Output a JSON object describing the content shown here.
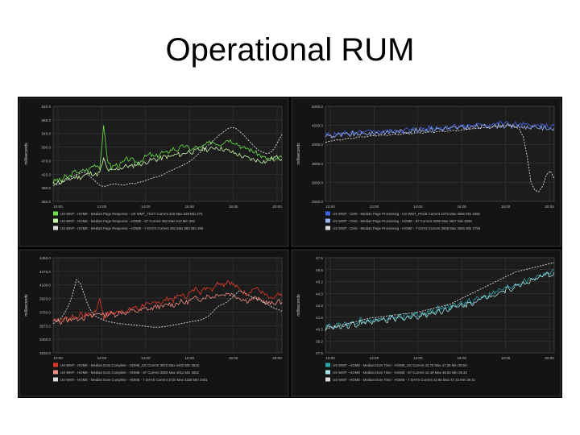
{
  "slide": {
    "title": "Operational RUM"
  },
  "chart_data": [
    {
      "type": "line",
      "ylabel": "milliseconds",
      "ylim": [
        350,
        620
      ],
      "yticks": [
        "620.0",
        "585.0",
        "545.0",
        "500.0",
        "470.0",
        "425.0",
        "390.0",
        "350.0"
      ],
      "xticks": [
        "10:00",
        "12:00",
        "14:00",
        "16:00",
        "18:00",
        "20:00"
      ],
      "grid": true,
      "series": [
        {
          "color": "#6be14a",
          "seed": 3,
          "values": [
            405,
            412,
            408,
            420,
            418,
            430,
            436,
            432,
            440,
            438,
            450,
            455,
            448,
            560,
            470,
            446,
            454,
            452,
            460,
            470,
            468,
            465,
            458,
            470,
            478,
            484,
            476,
            480,
            490,
            486,
            494,
            500,
            496,
            504,
            508,
            500,
            498,
            506,
            500,
            510,
            514,
            520,
            516,
            512,
            520,
            526,
            522,
            518,
            510,
            500,
            502,
            495,
            490,
            484,
            476,
            472,
            470,
            466,
            470,
            475
          ]
        },
        {
          "color": "#c6f5a8",
          "seed": 11,
          "values": [
            400,
            406,
            402,
            410,
            412,
            416,
            420,
            418,
            424,
            428,
            430,
            426,
            432,
            470,
            440,
            436,
            440,
            444,
            446,
            452,
            448,
            454,
            458,
            456,
            462,
            466,
            470,
            468,
            474,
            478,
            476,
            480,
            484,
            482,
            488,
            492,
            490,
            494,
            498,
            500,
            496,
            500,
            504,
            500,
            498,
            494,
            490,
            486,
            482,
            476,
            474,
            470,
            468,
            466,
            464,
            462,
            470,
            474,
            476,
            470
          ]
        },
        {
          "color": "#dcdcdc",
          "seed": 0,
          "values": [
            395,
            398,
            402,
            408,
            415,
            420,
            426,
            430,
            434,
            426,
            416,
            406,
            396,
            392,
            395,
            398,
            400,
            398,
            396,
            398,
            402,
            400,
            404,
            406,
            410,
            414,
            418,
            420,
            424,
            430,
            436,
            440,
            446,
            450,
            456,
            462,
            470,
            480,
            490,
            500,
            510,
            520,
            530,
            540,
            548,
            556,
            560,
            558,
            550,
            540,
            528,
            516,
            505,
            495,
            490,
            486,
            488,
            500,
            520,
            540
          ]
        }
      ],
      "legend": [
        "US WMT - HOME - Median Page Response - US WMT_TEST Current 426 Max 628 Min 370",
        "US WMT - HOME - Median Page Response - HOME - 87 Current 462 Max 510 Min 392",
        "US WMT - HOME - Median Page Response - HOME - 7 DAYS Current 481 Max 583 Min 366"
      ]
    },
    {
      "type": "line",
      "ylabel": "milliseconds",
      "ylim": [
        2500,
        5000
      ],
      "yticks": [
        "5000.0",
        "4500.0",
        "4000.0",
        "3500.0",
        "3000.0",
        "2500.0"
      ],
      "xticks": [
        "10:00",
        "12:00",
        "14:00",
        "16:00",
        "18:00",
        "20:00"
      ],
      "grid": true,
      "series": [
        {
          "color": "#3f63e8",
          "seed": 5,
          "values": [
            4250,
            4270,
            4230,
            4300,
            4260,
            4320,
            4280,
            4310,
            4260,
            4330,
            4290,
            4350,
            4310,
            4360,
            4320,
            4380,
            4340,
            4370,
            4330,
            4390,
            4350,
            4400,
            4360,
            4420,
            4380,
            4430,
            4400,
            4450,
            4410,
            4460,
            4430,
            4480,
            4440,
            4500,
            4460,
            4490,
            4450,
            4510,
            4480,
            4520,
            4490,
            4540,
            4500,
            4560,
            4520,
            4570,
            4530,
            4560,
            4510,
            4540,
            4500,
            4530,
            4490,
            4520,
            4480,
            4500,
            4470,
            4490,
            4460,
            4480
          ]
        },
        {
          "color": "#9ab0f0",
          "seed": 9,
          "values": [
            4220,
            4240,
            4200,
            4260,
            4230,
            4270,
            4240,
            4280,
            4250,
            4290,
            4260,
            4300,
            4270,
            4310,
            4290,
            4330,
            4300,
            4340,
            4320,
            4350,
            4330,
            4360,
            4340,
            4380,
            4350,
            4390,
            4370,
            4400,
            4380,
            4420,
            4390,
            4430,
            4400,
            4440,
            4420,
            4450,
            4430,
            4460,
            4440,
            4470,
            4450,
            4480,
            4460,
            4490,
            4470,
            4500,
            4480,
            4490,
            4460,
            4480,
            4450,
            4470,
            4440,
            4460,
            4430,
            4450,
            4420,
            4440,
            4410,
            4430
          ]
        },
        {
          "color": "#dcdcdc",
          "seed": 0,
          "values": [
            4050,
            4080,
            4100,
            4120,
            4110,
            4140,
            4160,
            4150,
            4180,
            4200,
            4190,
            4210,
            4230,
            4220,
            4240,
            4250,
            4230,
            4260,
            4270,
            4250,
            4280,
            4290,
            4270,
            4300,
            4310,
            4290,
            4320,
            4330,
            4310,
            4340,
            4350,
            4330,
            4360,
            4370,
            4350,
            4380,
            4390,
            4400,
            4410,
            4420,
            4430,
            4440,
            4450,
            4460,
            4470,
            4480,
            4490,
            4500,
            4480,
            4460,
            4400,
            4200,
            3700,
            3000,
            2800,
            2750,
            2900,
            3200,
            3300,
            3100
          ]
        }
      ],
      "legend": [
        "US WMT - CMS - Median Page Processing - US WMT_PAGE Current 4275 Max 4685 Min 4065",
        "US WMT - CMS - Median Page Processing - HOME - 87 Current 4296 Max 4627 Min 4059",
        "US WMT - CMS - Median Page Processing - HOME - 7 DAYS Current 3608 Max 4581 Min 2758"
      ]
    },
    {
      "type": "line",
      "ylabel": "milliseconds",
      "ylim": [
        3150,
        4450
      ],
      "yticks": [
        "4450.0",
        "4275.0",
        "4100.0",
        "3925.0",
        "3750.0",
        "3575.0",
        "3400.0",
        "3150.0"
      ],
      "xticks": [
        "10:00",
        "12:00",
        "14:00",
        "16:00",
        "18:00",
        "20:00"
      ],
      "grid": true,
      "series": [
        {
          "color": "#e23a2a",
          "seed": 7,
          "values": [
            3600,
            3620,
            3580,
            3640,
            3610,
            3660,
            3630,
            3680,
            3650,
            3700,
            3660,
            3720,
            3900,
            3620,
            3680,
            3700,
            3690,
            3720,
            3740,
            3700,
            3760,
            3780,
            3740,
            3800,
            3820,
            3790,
            3840,
            3860,
            3830,
            3880,
            3900,
            3870,
            3920,
            3950,
            3910,
            3960,
            3990,
            4050,
            3980,
            4020,
            4060,
            4020,
            4090,
            4120,
            4080,
            4140,
            4100,
            4060,
            4020,
            3980,
            3960,
            4000,
            4040,
            4010,
            3970,
            3930,
            3880,
            3900,
            3940,
            3920
          ]
        },
        {
          "color": "#f08d84",
          "seed": 13,
          "values": [
            3580,
            3600,
            3570,
            3610,
            3590,
            3630,
            3600,
            3640,
            3620,
            3660,
            3640,
            3680,
            3700,
            3660,
            3680,
            3690,
            3670,
            3700,
            3710,
            3690,
            3720,
            3730,
            3710,
            3740,
            3760,
            3740,
            3770,
            3790,
            3770,
            3800,
            3820,
            3800,
            3830,
            3850,
            3830,
            3860,
            3880,
            3900,
            3880,
            3910,
            3930,
            3910,
            3940,
            3960,
            3940,
            3970,
            3950,
            3930,
            3900,
            3880,
            3860,
            3880,
            3900,
            3880,
            3860,
            3840,
            3820,
            3830,
            3850,
            3840
          ]
        },
        {
          "color": "#dcdcdc",
          "seed": 0,
          "values": [
            3550,
            3580,
            3620,
            3700,
            3800,
            3950,
            4150,
            4100,
            3950,
            3800,
            3700,
            3650,
            3620,
            3600,
            3580,
            3570,
            3560,
            3550,
            3545,
            3540,
            3535,
            3530,
            3525,
            3520,
            3510,
            3505,
            3500,
            3500,
            3505,
            3510,
            3520,
            3530,
            3540,
            3550,
            3560,
            3570,
            3580,
            3590,
            3600,
            3620,
            3650,
            3700,
            3760,
            3800,
            3820,
            3850,
            3900,
            3950,
            4000,
            3980,
            3950,
            3920,
            3900,
            3880,
            3850,
            3820,
            3790,
            3760,
            3740,
            3720
          ]
        }
      ],
      "legend": [
        "US WMT - HOME - Median Dom Complete - HOME_US Current 3872 Max 4402 Min 3515",
        "US WMT - HOME - Median Dom Complete - HOME - 87 Current 3803 Max 4011 Min 3582",
        "US WMT - HOME - Median Dom Complete - HOME - 7 DAYS Current 3720 Max 4238 Min 3401"
      ]
    },
    {
      "type": "line",
      "ylabel": "milliseconds",
      "ylim": [
        37.5,
        47.5
      ],
      "yticks": [
        "47.5",
        "46.5",
        "45.2",
        "44.0",
        "42.8",
        "41.6",
        "40.5",
        "39.2",
        "37.5"
      ],
      "xticks": [
        "10:00",
        "12:00",
        "14:00",
        "16:00",
        "18:00",
        "20:00"
      ],
      "grid": true,
      "series": [
        {
          "color": "#2aa3a8",
          "seed": 4,
          "values": [
            40.2,
            40.5,
            40.1,
            40.6,
            40.3,
            40.8,
            40.4,
            40.9,
            40.5,
            41.0,
            40.7,
            41.1,
            40.8,
            41.2,
            40.9,
            41.3,
            41.0,
            41.4,
            41.1,
            41.5,
            41.2,
            41.6,
            41.3,
            41.7,
            41.4,
            41.8,
            41.6,
            42.0,
            41.8,
            42.2,
            42.0,
            42.4,
            42.2,
            42.6,
            42.4,
            42.8,
            42.6,
            43.0,
            42.9,
            43.3,
            43.2,
            43.6,
            43.5,
            43.9,
            43.8,
            44.2,
            44.1,
            44.5,
            44.4,
            44.8,
            44.7,
            45.1,
            45.0,
            45.4,
            45.3,
            45.7,
            45.6,
            46.0,
            45.8,
            46.2
          ]
        },
        {
          "color": "#a6e3e6",
          "seed": 10,
          "values": [
            40.0,
            40.3,
            40.0,
            40.4,
            40.1,
            40.6,
            40.2,
            40.7,
            40.3,
            40.8,
            40.5,
            40.9,
            40.6,
            41.0,
            40.7,
            41.1,
            40.8,
            41.2,
            40.9,
            41.3,
            41.0,
            41.4,
            41.1,
            41.5,
            41.2,
            41.6,
            41.4,
            41.8,
            41.6,
            42.0,
            41.8,
            42.2,
            42.0,
            42.4,
            42.2,
            42.6,
            42.4,
            42.8,
            42.7,
            43.1,
            43.0,
            43.4,
            43.3,
            43.7,
            43.6,
            44.0,
            43.9,
            44.3,
            44.2,
            44.6,
            44.5,
            44.9,
            44.8,
            45.2,
            45.1,
            45.5,
            45.4,
            45.8,
            45.6,
            46.0
          ]
        },
        {
          "color": "#dcdcdc",
          "seed": 0,
          "values": [
            40.0,
            40.1,
            40.2,
            40.3,
            40.4,
            40.5,
            40.6,
            40.7,
            40.8,
            40.9,
            41.0,
            41.1,
            41.2,
            41.2,
            41.3,
            41.3,
            41.4,
            41.4,
            41.5,
            41.5,
            41.6,
            41.6,
            41.7,
            41.7,
            41.8,
            41.9,
            42.0,
            42.1,
            42.2,
            42.3,
            42.4,
            42.5,
            42.6,
            42.8,
            43.0,
            43.2,
            43.4,
            43.6,
            43.8,
            44.0,
            44.2,
            44.4,
            44.6,
            44.8,
            45.0,
            45.2,
            45.4,
            45.6,
            45.8,
            46.0,
            46.1,
            46.2,
            46.3,
            46.4,
            46.5,
            46.6,
            46.7,
            46.8,
            46.9,
            47.0
          ]
        }
      ],
      "legend": [
        "US WMT - HOME - Median Dom Time - HOME_US Current 42.70 Max 47.36 Min 39.50",
        "US WMT - HOME - Median Dom Time - HOME - 87 Current 42.49 Max 46.84 Min 39.32",
        "US WMT - HOME - Median Dom Time - HOME - 7 DAYS Current 42.86 Max 47.10 Min 39.41"
      ]
    }
  ]
}
